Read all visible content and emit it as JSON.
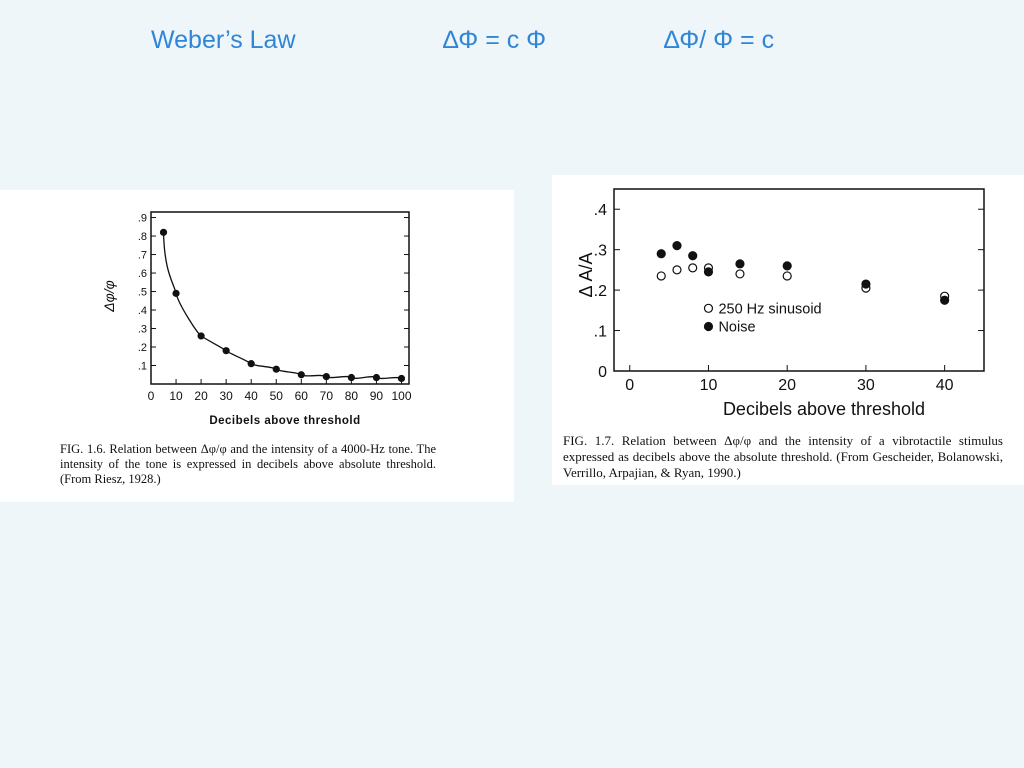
{
  "slide": {
    "title": "Weber’s Law",
    "formula1": "∆Φ = c Φ",
    "formula2": "∆Φ/ Φ = c"
  },
  "colors": {
    "title": "#2f86d6",
    "background": "#eef6f9",
    "panel": "#ffffff",
    "ink": "#111111"
  },
  "figures": [
    {
      "caption": "FIG. 1.6. Relation between Δφ/φ and the intensity of a 4000-Hz tone. The intensity of the tone is expressed in decibels above absolute threshold. (From Riesz, 1928.)"
    },
    {
      "caption": "FIG. 1.7. Relation between Δφ/φ and the intensity of a vibrotactile stimulus expressed as decibels above the absolute threshold. (From Gescheider, Bolanowski, Verrillo, Arpajian, & Ryan, 1990.)"
    }
  ],
  "chart_data": [
    {
      "type": "scatter",
      "fitted_curve": true,
      "xlabel": "Decibels above threshold",
      "ylabel": "Δφ/φ",
      "xlim": [
        0,
        103
      ],
      "ylim": [
        0,
        0.93
      ],
      "xticks": [
        "0",
        "10",
        "20",
        "30",
        "40",
        "50",
        "60",
        "70",
        "80",
        "90",
        "100"
      ],
      "yticks": [
        ".1",
        ".2",
        ".3",
        ".4",
        ".5",
        ".6",
        ".7",
        ".8",
        ".9"
      ],
      "grid": false,
      "series": [
        {
          "marker": "filled",
          "x": [
            5,
            10,
            20,
            30,
            40,
            50,
            60,
            70,
            80,
            90,
            100
          ],
          "y": [
            0.82,
            0.49,
            0.26,
            0.18,
            0.11,
            0.08,
            0.05,
            0.04,
            0.035,
            0.035,
            0.03
          ]
        }
      ]
    },
    {
      "type": "scatter",
      "xlabel": "Decibels above threshold",
      "ylabel": "Δ A/A",
      "xlim": [
        -2,
        45
      ],
      "ylim": [
        0,
        0.45
      ],
      "xticks": [
        "0",
        "10",
        "20",
        "30",
        "40"
      ],
      "yticks": [
        "0",
        ".1",
        ".2",
        ".3",
        ".4"
      ],
      "grid": false,
      "legend_position": "center-left",
      "series": [
        {
          "name": "250 Hz sinusoid",
          "marker": "open",
          "x": [
            4,
            6,
            8,
            10,
            14,
            20,
            30,
            40
          ],
          "y": [
            0.235,
            0.25,
            0.255,
            0.255,
            0.24,
            0.235,
            0.205,
            0.185
          ]
        },
        {
          "name": "Noise",
          "marker": "filled",
          "x": [
            4,
            6,
            8,
            10,
            14,
            20,
            30,
            40
          ],
          "y": [
            0.29,
            0.31,
            0.285,
            0.245,
            0.265,
            0.26,
            0.215,
            0.175
          ]
        }
      ]
    }
  ]
}
